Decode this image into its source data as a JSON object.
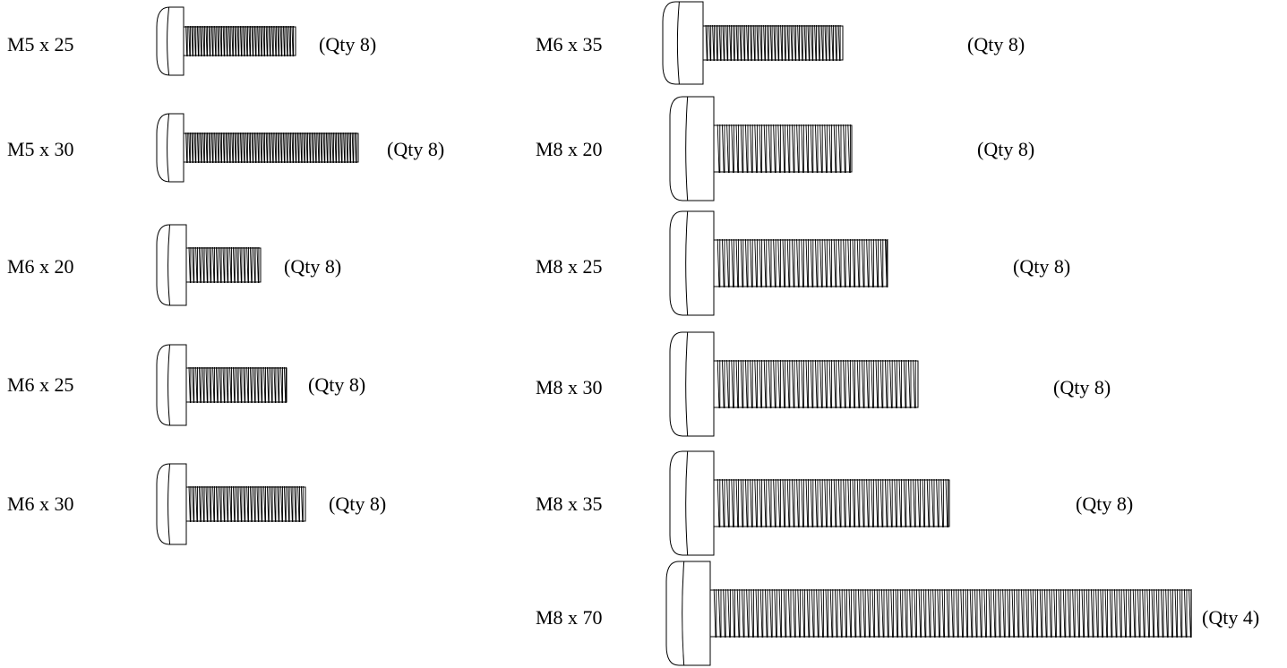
{
  "diagram": {
    "columns": [
      {
        "items": [
          {
            "size": "M5 x 25",
            "qty": "(Qty 8)"
          },
          {
            "size": "M5 x 30",
            "qty": "(Qty 8)"
          },
          {
            "size": "M6 x 20",
            "qty": "(Qty 8)"
          },
          {
            "size": "M6 x 25",
            "qty": "(Qty 8)"
          },
          {
            "size": "M6 x 30",
            "qty": "(Qty 8)"
          }
        ]
      },
      {
        "items": [
          {
            "size": "M6 x 35",
            "qty": "(Qty 8)"
          },
          {
            "size": "M8 x 20",
            "qty": "(Qty 8)"
          },
          {
            "size": "M8 x 25",
            "qty": "(Qty 8)"
          },
          {
            "size": "M8 x 30",
            "qty": "(Qty 8)"
          },
          {
            "size": "M8 x 35",
            "qty": "(Qty 8)"
          },
          {
            "size": "M8 x 70",
            "qty": "(Qty 4)"
          }
        ]
      }
    ]
  }
}
